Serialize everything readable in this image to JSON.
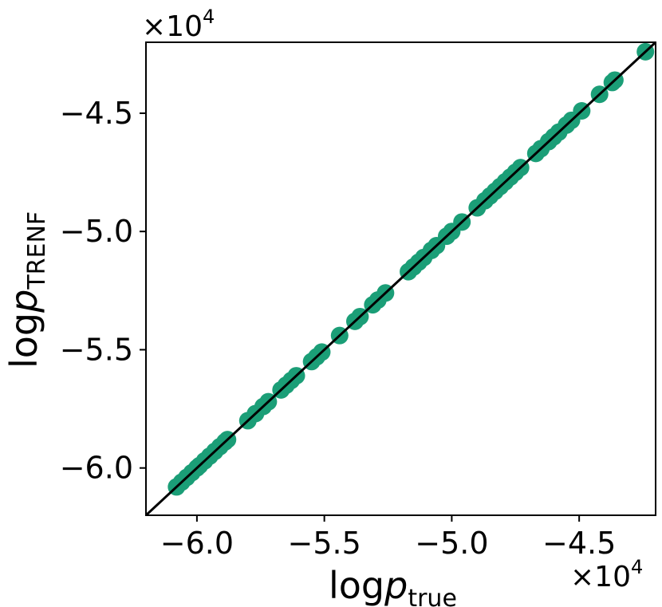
{
  "chart_data": {
    "type": "scatter",
    "title": "",
    "xlabel": {
      "main": "log",
      "italic": "p",
      "sub": "true"
    },
    "ylabel": {
      "main": "log",
      "italic": "p",
      "sub": "TRENF"
    },
    "x_offset": {
      "base": "×10",
      "exp": "4"
    },
    "y_offset": {
      "base": "×10",
      "exp": "4"
    },
    "xlim": [
      -6.2,
      -4.2
    ],
    "ylim": [
      -6.2,
      -4.2
    ],
    "x_scale": 10000,
    "xticks": [
      -6.0,
      -5.5,
      -5.0,
      -4.5
    ],
    "yticks": [
      -6.0,
      -5.5,
      -5.0,
      -4.5
    ],
    "xtick_labels": [
      "−6.0",
      "−5.5",
      "−5.0",
      "−4.5"
    ],
    "ytick_labels": [
      "−6.0",
      "−5.5",
      "−5.0",
      "−4.5"
    ],
    "grid": false,
    "marker_color": "#1b9e77",
    "reference_line": {
      "from": [
        -6.2,
        -6.2
      ],
      "to": [
        -4.2,
        -4.2
      ],
      "color": "#000000"
    },
    "series": [
      {
        "x": [
          -6.08,
          -6.06,
          -6.04,
          -6.02,
          -6.0,
          -5.99,
          -5.97,
          -5.95,
          -5.93,
          -5.91,
          -5.89,
          -5.88,
          -5.8,
          -5.77,
          -5.74,
          -5.72,
          -5.67,
          -5.65,
          -5.63,
          -5.61,
          -5.55,
          -5.53,
          -5.51,
          -5.44,
          -5.38,
          -5.36,
          -5.31,
          -5.29,
          -5.26,
          -5.17,
          -5.15,
          -5.13,
          -5.11,
          -5.08,
          -5.06,
          -5.02,
          -5.0,
          -4.96,
          -4.9,
          -4.87,
          -4.85,
          -4.83,
          -4.81,
          -4.79,
          -4.77,
          -4.75,
          -4.73,
          -4.67,
          -4.65,
          -4.62,
          -4.6,
          -4.58,
          -4.55,
          -4.53,
          -4.49,
          -4.42,
          -4.37,
          -4.36,
          -4.24
        ],
        "y": [
          -6.08,
          -6.06,
          -6.04,
          -6.02,
          -6.0,
          -5.99,
          -5.97,
          -5.95,
          -5.93,
          -5.91,
          -5.89,
          -5.88,
          -5.8,
          -5.77,
          -5.74,
          -5.72,
          -5.67,
          -5.65,
          -5.63,
          -5.61,
          -5.55,
          -5.53,
          -5.51,
          -5.44,
          -5.38,
          -5.36,
          -5.31,
          -5.29,
          -5.26,
          -5.17,
          -5.15,
          -5.13,
          -5.11,
          -5.08,
          -5.06,
          -5.02,
          -5.0,
          -4.96,
          -4.9,
          -4.87,
          -4.85,
          -4.83,
          -4.81,
          -4.79,
          -4.77,
          -4.75,
          -4.73,
          -4.67,
          -4.65,
          -4.62,
          -4.6,
          -4.58,
          -4.55,
          -4.53,
          -4.49,
          -4.42,
          -4.37,
          -4.36,
          -4.24
        ]
      }
    ]
  }
}
